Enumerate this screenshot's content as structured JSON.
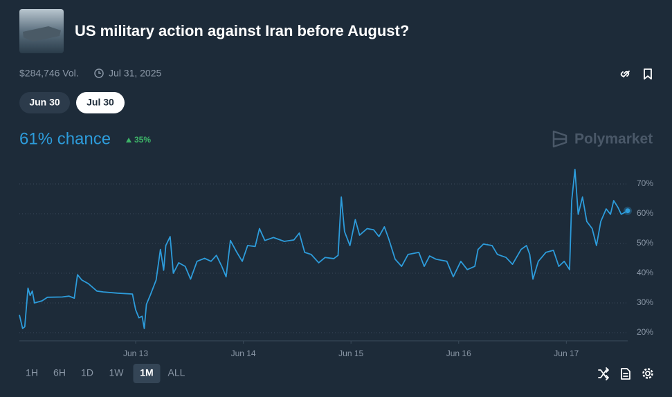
{
  "header": {
    "title": "US military action against Iran before August?",
    "volume": "$284,746 Vol.",
    "end_date": "Jul 31, 2025"
  },
  "date_buttons": [
    "Jun 30",
    "Jul 30"
  ],
  "selected_date": "Jul 30",
  "chance": "61% chance",
  "change": "35%",
  "brand": "Polymarket",
  "ranges": [
    "1H",
    "6H",
    "1D",
    "1W",
    "1M",
    "ALL"
  ],
  "selected_range": "1M",
  "chart_data": {
    "type": "line",
    "grid": true,
    "x": [
      11.92,
      11.95,
      11.97,
      12.0,
      12.02,
      12.04,
      12.06,
      12.13,
      12.18,
      12.32,
      12.38,
      12.43,
      12.46,
      12.5,
      12.56,
      12.64,
      12.7,
      12.83,
      12.97,
      13.0,
      13.03,
      13.06,
      13.08,
      13.1,
      13.14,
      13.19,
      13.23,
      13.26,
      13.28,
      13.32,
      13.35,
      13.4,
      13.46,
      13.51,
      13.57,
      13.64,
      13.7,
      13.75,
      13.8,
      13.84,
      13.88,
      13.94,
      13.99,
      14.04,
      14.11,
      14.15,
      14.2,
      14.28,
      14.38,
      14.47,
      14.52,
      14.57,
      14.63,
      14.7,
      14.76,
      14.84,
      14.88,
      14.91,
      14.94,
      14.99,
      15.04,
      15.08,
      15.15,
      15.21,
      15.26,
      15.31,
      15.35,
      15.41,
      15.47,
      15.53,
      15.63,
      15.68,
      15.73,
      15.79,
      15.89,
      15.95,
      16.02,
      16.08,
      16.15,
      16.18,
      16.23,
      16.31,
      16.36,
      16.44,
      16.5,
      16.58,
      16.63,
      16.66,
      16.69,
      16.74,
      16.81,
      16.88,
      16.93,
      16.98,
      17.03,
      17.05,
      17.08,
      17.11,
      17.15,
      17.19,
      17.24,
      17.28,
      17.32,
      17.37,
      17.41,
      17.44,
      17.48,
      17.51,
      17.57
    ],
    "series": [
      {
        "color": "#2d9cdb",
        "values": [
          26,
          21.4,
          22,
          35,
          32.5,
          34,
          30,
          30.7,
          31.9,
          32,
          32.3,
          31.6,
          39.5,
          37.7,
          36.5,
          34,
          33.7,
          33.3,
          33,
          27.7,
          25,
          25.5,
          21.4,
          29.5,
          33,
          37.7,
          48,
          41,
          49.3,
          52.3,
          40,
          43.5,
          42.3,
          38,
          44,
          45,
          44,
          46,
          42.3,
          38.8,
          51,
          47,
          44,
          49.3,
          49,
          55,
          51,
          52,
          50.7,
          51.2,
          53.5,
          47,
          46.3,
          43.5,
          45.3,
          44.9,
          46,
          65.6,
          54,
          49.3,
          58,
          52.8,
          55,
          54.6,
          52.3,
          55.6,
          51.6,
          44.7,
          42.3,
          46.3,
          47,
          42.3,
          45.8,
          44.7,
          44,
          38.8,
          44,
          41.2,
          42.3,
          48,
          49.8,
          49.3,
          46.3,
          45.3,
          43,
          48,
          49.3,
          46.3,
          38,
          44,
          47,
          47.7,
          42.3,
          44,
          41.2,
          64.4,
          74.9,
          59.8,
          65.6,
          57.4,
          55,
          49.3,
          57.4,
          61.6,
          59.8,
          64.4,
          62.1,
          59.8,
          61
        ]
      }
    ],
    "xlim": [
      11.92,
      17.57
    ],
    "xticks": [
      {
        "value": 13,
        "label": "Jun 13"
      },
      {
        "value": 14,
        "label": "Jun 14"
      },
      {
        "value": 15,
        "label": "Jun 15"
      },
      {
        "value": 16,
        "label": "Jun 16"
      },
      {
        "value": 17,
        "label": "Jun 17"
      }
    ],
    "ylim": [
      17,
      77
    ],
    "yticks": [
      {
        "value": 20,
        "label": "20%"
      },
      {
        "value": 30,
        "label": "30%"
      },
      {
        "value": 40,
        "label": "40%"
      },
      {
        "value": 50,
        "label": "50%"
      },
      {
        "value": 60,
        "label": "60%"
      },
      {
        "value": 70,
        "label": "70%"
      }
    ]
  }
}
